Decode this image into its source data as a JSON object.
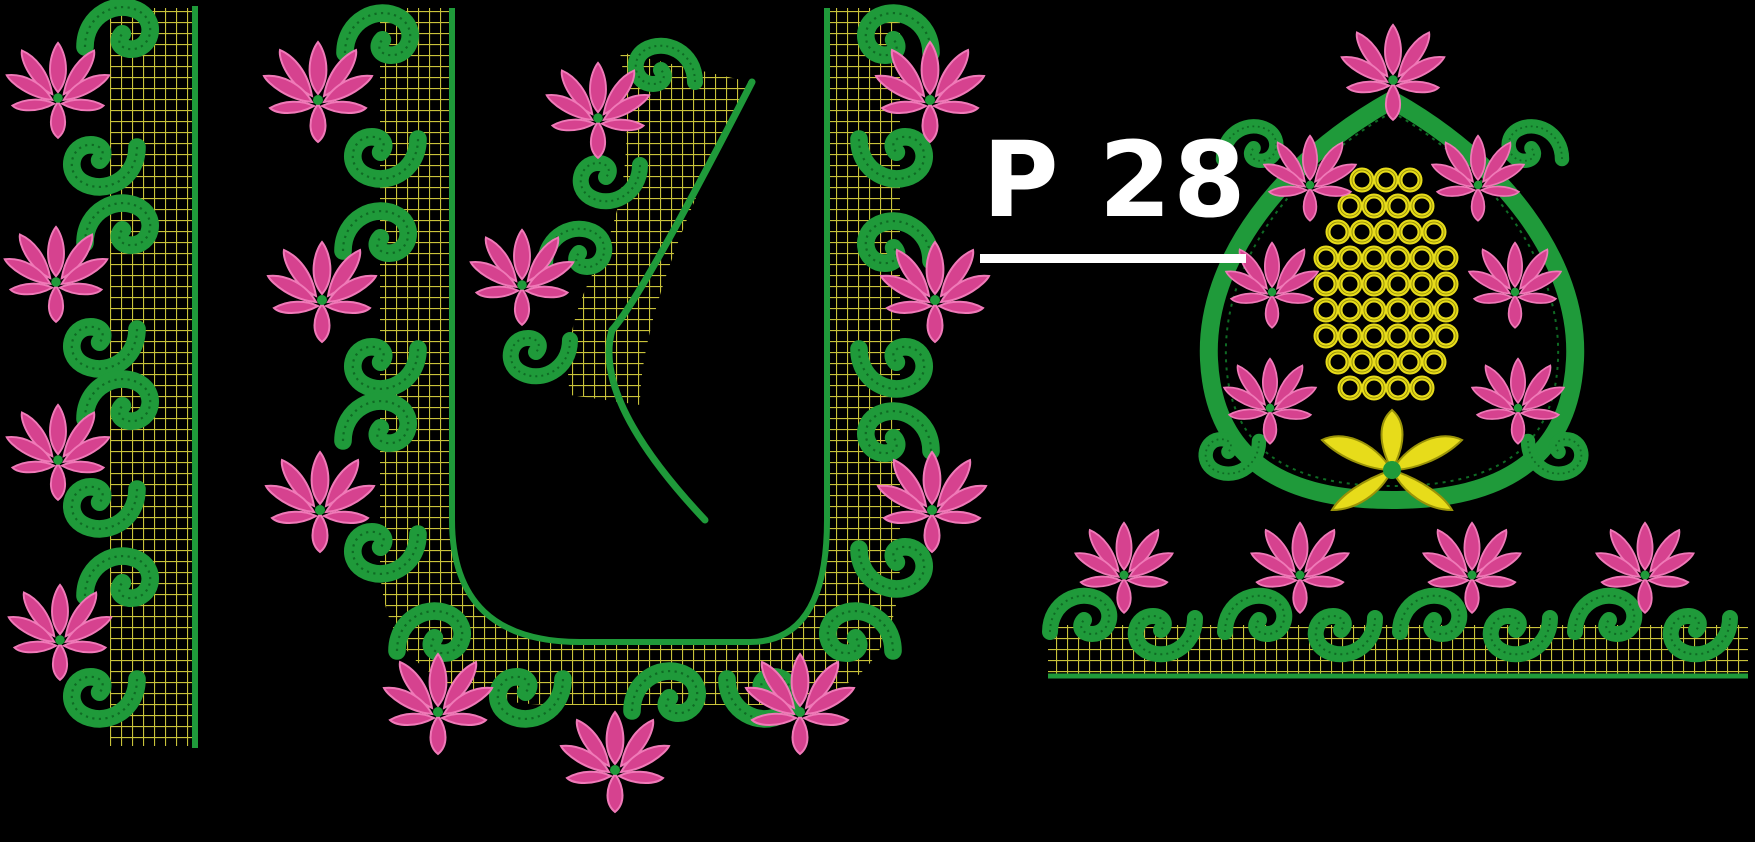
{
  "image": {
    "label": "P 28",
    "colors": {
      "background": "#000000",
      "petal": "#d6428f",
      "petal_light": "#f07ab8",
      "leaf": "#1f9a3a",
      "leaf_dark": "#0f6b24",
      "mesh": "#c9c23a",
      "yellow": "#e7dc1a",
      "yellow_dark": "#9a9308",
      "label": "#ffffff"
    }
  }
}
